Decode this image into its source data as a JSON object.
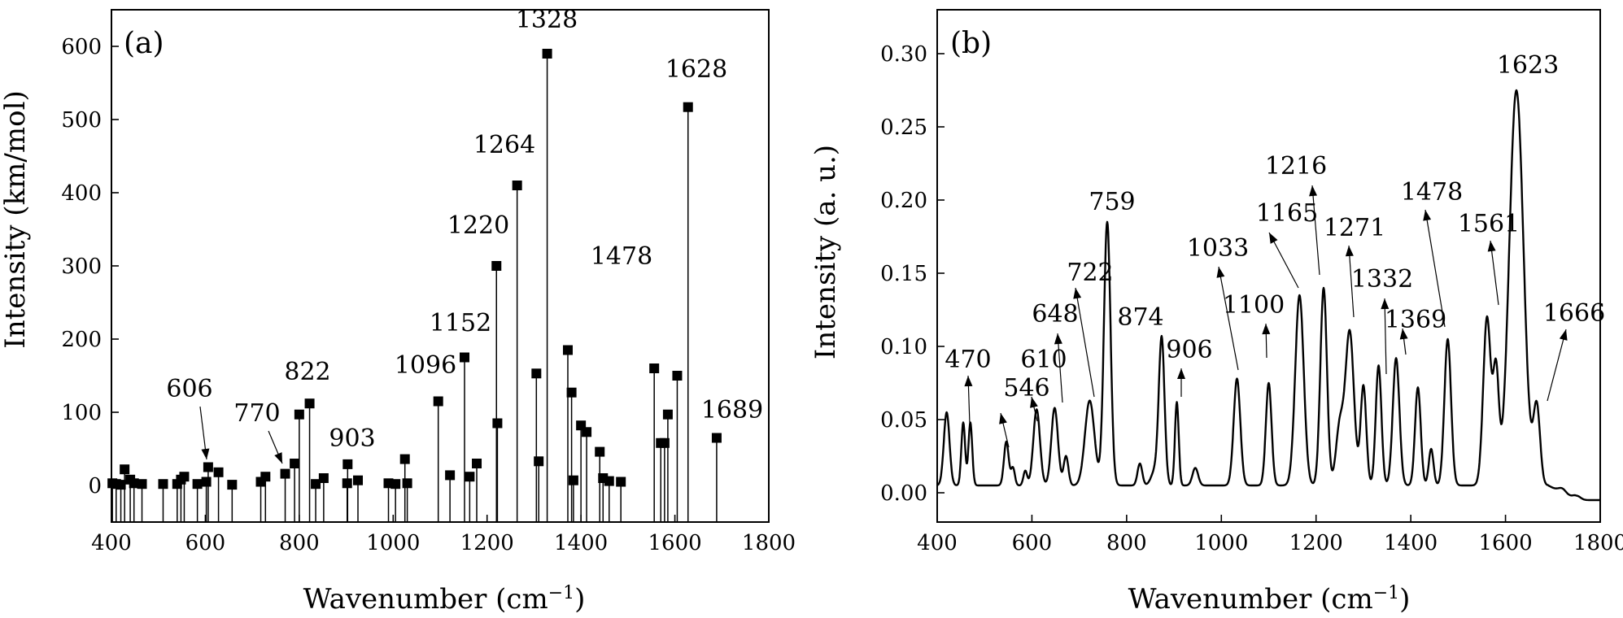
{
  "chart_data": [
    {
      "type": "stem",
      "panel_label": "(a)",
      "xlabel": "Wavenumber (cm",
      "xlabel_sup": "−1",
      "xlabel_close": ")",
      "ylabel": "Intensity (km/mol)",
      "xlim": [
        400,
        1800
      ],
      "ylim": [
        -50,
        650
      ],
      "xticks": [
        400,
        600,
        800,
        1000,
        1200,
        1400,
        1600,
        1800
      ],
      "yticks": [
        0,
        100,
        200,
        300,
        400,
        500,
        600
      ],
      "x": [
        402,
        410,
        420,
        428,
        440,
        448,
        465,
        510,
        540,
        548,
        555,
        583,
        602,
        606,
        628,
        657,
        718,
        728,
        770,
        790,
        800,
        822,
        835,
        852,
        902,
        903,
        925,
        990,
        1005,
        1025,
        1030,
        1096,
        1121,
        1152,
        1163,
        1178,
        1220,
        1222,
        1264,
        1305,
        1310,
        1328,
        1372,
        1380,
        1384,
        1400,
        1412,
        1440,
        1447,
        1460,
        1485,
        1556,
        1570,
        1578,
        1585,
        1605,
        1628,
        1689
      ],
      "y": [
        3,
        2,
        1,
        22,
        8,
        3,
        2,
        2,
        2,
        8,
        12,
        2,
        5,
        25,
        18,
        1,
        5,
        12,
        16,
        30,
        97,
        112,
        2,
        10,
        3,
        29,
        7,
        3,
        2,
        36,
        3,
        115,
        14,
        175,
        12,
        30,
        300,
        85,
        410,
        153,
        33,
        590,
        185,
        127,
        7,
        82,
        73,
        46,
        10,
        6,
        5,
        160,
        58,
        58,
        97,
        150,
        517,
        65
      ],
      "annotations": [
        {
          "text": "606",
          "x": 606
        },
        {
          "text": "770",
          "x": 770
        },
        {
          "text": "822",
          "x": 822
        },
        {
          "text": "903",
          "x": 903
        },
        {
          "text": "1096",
          "x": 1096
        },
        {
          "text": "1152",
          "x": 1152
        },
        {
          "text": "1220",
          "x": 1220
        },
        {
          "text": "1264",
          "x": 1264
        },
        {
          "text": "1328",
          "x": 1328
        },
        {
          "text": "1478",
          "x": 1478
        },
        {
          "text": "1628",
          "x": 1628
        },
        {
          "text": "1689",
          "x": 1689
        }
      ]
    },
    {
      "type": "line",
      "panel_label": "(b)",
      "xlabel": "Wavenumber (cm",
      "xlabel_sup": "−1",
      "xlabel_close": ")",
      "ylabel": "Intensity (a. u.)",
      "xlim": [
        400,
        1800
      ],
      "ylim": [
        -0.02,
        0.33
      ],
      "xticks": [
        400,
        600,
        800,
        1000,
        1200,
        1400,
        1600,
        1800
      ],
      "yticks": [
        "0.00",
        "0.05",
        "0.10",
        "0.15",
        "0.20",
        "0.25",
        "0.30"
      ],
      "baseline": 0.005,
      "peaks": [
        {
          "x": 420,
          "h": 0.05,
          "w": 6
        },
        {
          "x": 455,
          "h": 0.043,
          "w": 4
        },
        {
          "x": 470,
          "h": 0.043,
          "w": 4
        },
        {
          "x": 546,
          "h": 0.03,
          "w": 5
        },
        {
          "x": 560,
          "h": 0.012,
          "w": 4
        },
        {
          "x": 586,
          "h": 0.01,
          "w": 4
        },
        {
          "x": 610,
          "h": 0.052,
          "w": 7
        },
        {
          "x": 648,
          "h": 0.053,
          "w": 7
        },
        {
          "x": 672,
          "h": 0.02,
          "w": 5
        },
        {
          "x": 722,
          "h": 0.058,
          "w": 10
        },
        {
          "x": 759,
          "h": 0.18,
          "w": 7
        },
        {
          "x": 828,
          "h": 0.015,
          "w": 5
        },
        {
          "x": 860,
          "h": 0.01,
          "w": 8
        },
        {
          "x": 874,
          "h": 0.1,
          "w": 6
        },
        {
          "x": 906,
          "h": 0.057,
          "w": 4
        },
        {
          "x": 945,
          "h": 0.012,
          "w": 6
        },
        {
          "x": 1033,
          "h": 0.073,
          "w": 7
        },
        {
          "x": 1100,
          "h": 0.07,
          "w": 6
        },
        {
          "x": 1165,
          "h": 0.13,
          "w": 9
        },
        {
          "x": 1216,
          "h": 0.135,
          "w": 7
        },
        {
          "x": 1250,
          "h": 0.04,
          "w": 8
        },
        {
          "x": 1271,
          "h": 0.105,
          "w": 9
        },
        {
          "x": 1300,
          "h": 0.068,
          "w": 6
        },
        {
          "x": 1332,
          "h": 0.082,
          "w": 6
        },
        {
          "x": 1369,
          "h": 0.087,
          "w": 7
        },
        {
          "x": 1415,
          "h": 0.067,
          "w": 6
        },
        {
          "x": 1443,
          "h": 0.025,
          "w": 5
        },
        {
          "x": 1478,
          "h": 0.1,
          "w": 7
        },
        {
          "x": 1561,
          "h": 0.115,
          "w": 8
        },
        {
          "x": 1580,
          "h": 0.075,
          "w": 6
        },
        {
          "x": 1623,
          "h": 0.27,
          "w": 15
        },
        {
          "x": 1666,
          "h": 0.053,
          "w": 7
        },
        {
          "x": 1720,
          "h": 0.003,
          "w": 8
        },
        {
          "x": 1750,
          "h": 0.003,
          "w": 8
        }
      ],
      "annotations": [
        {
          "text": "470",
          "x": 470
        },
        {
          "text": "546",
          "x": 546
        },
        {
          "text": "610",
          "x": 610
        },
        {
          "text": "648",
          "x": 648
        },
        {
          "text": "722",
          "x": 722
        },
        {
          "text": "759",
          "x": 759
        },
        {
          "text": "874",
          "x": 874
        },
        {
          "text": "906",
          "x": 906
        },
        {
          "text": "1033",
          "x": 1033
        },
        {
          "text": "1100",
          "x": 1100
        },
        {
          "text": "1165",
          "x": 1165
        },
        {
          "text": "1216",
          "x": 1216
        },
        {
          "text": "1271",
          "x": 1271
        },
        {
          "text": "1332",
          "x": 1332
        },
        {
          "text": "1369",
          "x": 1369
        },
        {
          "text": "1478",
          "x": 1478
        },
        {
          "text": "1561",
          "x": 1561
        },
        {
          "text": "1623",
          "x": 1623
        },
        {
          "text": "1666",
          "x": 1666
        }
      ]
    }
  ]
}
